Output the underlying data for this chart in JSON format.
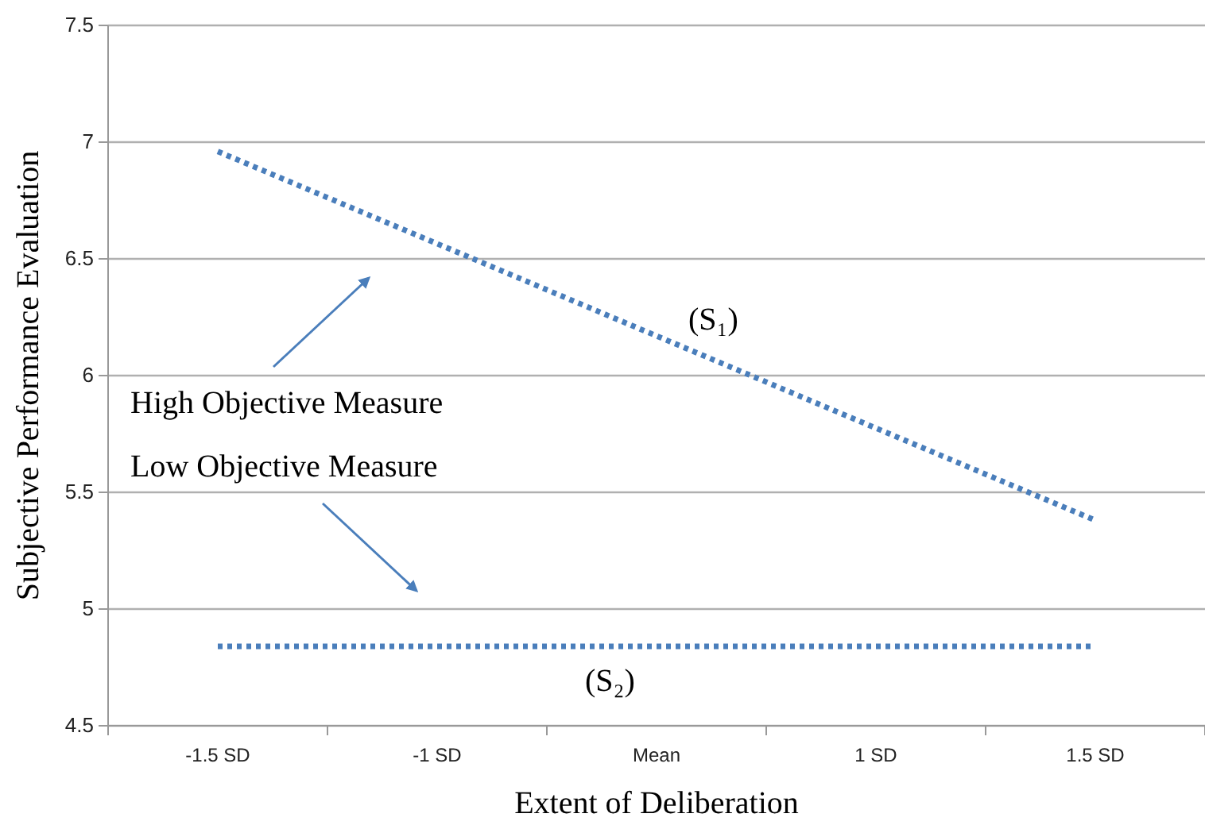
{
  "chart_data": {
    "type": "line",
    "xlabel": "Extent of Deliberation",
    "ylabel": "Subjective Performance Evaluation",
    "categories": [
      "-1.5 SD",
      "-1 SD",
      "Mean",
      "1 SD",
      "1.5 SD"
    ],
    "series": [
      {
        "name": "(S₁)",
        "color": "#4a7ebb",
        "values": [
          6.96,
          6.565,
          6.17,
          5.775,
          5.38
        ]
      },
      {
        "name": "(S₂)",
        "color": "#4a7ebb",
        "values": [
          4.84,
          4.84,
          4.84,
          4.84,
          4.84
        ]
      }
    ],
    "ylim": [
      4.5,
      7.5
    ],
    "yticks": [
      4.5,
      5,
      5.5,
      6,
      6.5,
      7,
      7.5
    ],
    "grid": "y",
    "line_style": "dotted",
    "marker": "none",
    "annotations": [
      "High Objective Measure",
      "Low Objective Measure"
    ]
  }
}
